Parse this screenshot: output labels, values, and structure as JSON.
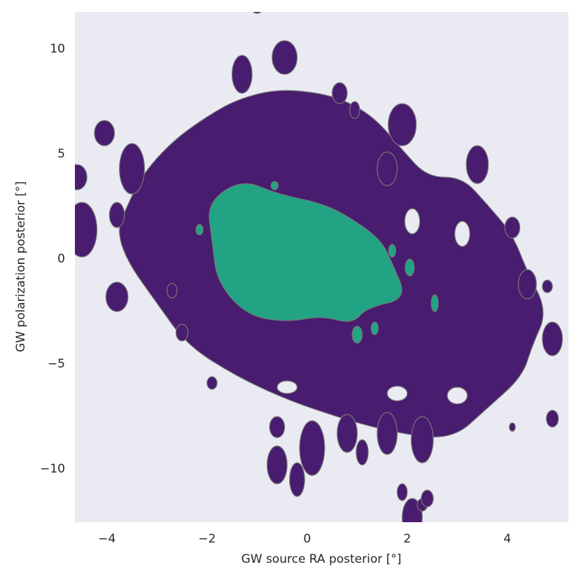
{
  "chart_data": {
    "type": "contour",
    "xlabel": "GW source RA posterior [°]",
    "ylabel": "GW polarization posterior [°]",
    "xlim": [
      -4.64,
      5.22
    ],
    "ylim": [
      -12.53,
      11.77
    ],
    "xticks": [
      {
        "value": -4,
        "label": "−4"
      },
      {
        "value": -2,
        "label": "−2"
      },
      0,
      2,
      4
    ],
    "yticks": [
      {
        "value": -10,
        "label": "−10"
      },
      {
        "value": -5,
        "label": "−5"
      },
      0,
      5,
      10
    ],
    "grid": false,
    "background": "#eaeaf2",
    "colors": [
      "#481c6e",
      "#22a384"
    ]
  }
}
